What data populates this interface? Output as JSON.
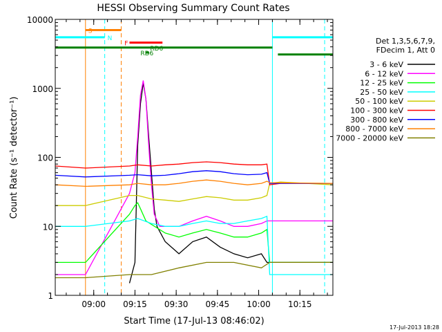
{
  "chart_data": {
    "type": "line",
    "title": "HESSI Observing Summary Count Rates",
    "xlabel": "Start Time (17-Jul-13 08:46:02)",
    "ylabel": "Count Rate (s⁻¹ detector⁻¹)",
    "y_scale": "log",
    "ylim": [
      1,
      10000
    ],
    "xlim_minutes": [
      0,
      101
    ],
    "x_ticks": [
      {
        "label": "09:00",
        "t": 14
      },
      {
        "label": "09:15",
        "t": 29
      },
      {
        "label": "09:30",
        "t": 44
      },
      {
        "label": "09:45",
        "t": 59
      },
      {
        "label": "10:00",
        "t": 74
      },
      {
        "label": "10:15",
        "t": 89
      }
    ],
    "y_ticks": [
      {
        "label": "1",
        "v": 1
      },
      {
        "label": "10",
        "v": 10
      },
      {
        "label": "100",
        "v": 100
      },
      {
        "label": "1000",
        "v": 1000
      },
      {
        "label": "10000",
        "v": 10000
      }
    ],
    "legend": {
      "placement": "right",
      "header": [
        "Det 1,3,5,6,7,9,",
        "FDecim 1, Att 0"
      ]
    },
    "series": [
      {
        "name": "3 - 6 keV",
        "color": "#000000",
        "points": [
          [
            27,
            1.5
          ],
          [
            29,
            3
          ],
          [
            30,
            150
          ],
          [
            31,
            600
          ],
          [
            32,
            1200
          ],
          [
            33,
            700
          ],
          [
            34,
            200
          ],
          [
            35,
            60
          ],
          [
            36,
            18
          ],
          [
            37,
            10
          ],
          [
            40,
            6
          ],
          [
            45,
            4
          ],
          [
            50,
            6
          ],
          [
            55,
            7
          ],
          [
            60,
            5
          ],
          [
            65,
            4
          ],
          [
            70,
            3.5
          ],
          [
            75,
            4
          ],
          [
            77,
            3
          ],
          [
            82,
            3
          ],
          [
            101,
            3
          ]
        ]
      },
      {
        "name": "6 - 12 keV",
        "color": "#ff00ff",
        "points": [
          [
            0,
            2
          ],
          [
            11,
            2
          ],
          [
            27,
            30
          ],
          [
            29,
            60
          ],
          [
            30,
            200
          ],
          [
            31,
            800
          ],
          [
            32,
            1300
          ],
          [
            33,
            700
          ],
          [
            34,
            150
          ],
          [
            35,
            40
          ],
          [
            36,
            15
          ],
          [
            38,
            10
          ],
          [
            45,
            10
          ],
          [
            50,
            12
          ],
          [
            55,
            14
          ],
          [
            60,
            12
          ],
          [
            65,
            10
          ],
          [
            70,
            10
          ],
          [
            75,
            11
          ],
          [
            77,
            12
          ],
          [
            80,
            12
          ],
          [
            101,
            12
          ]
        ]
      },
      {
        "name": "12 - 25 keV",
        "color": "#00ff00",
        "points": [
          [
            0,
            3
          ],
          [
            11,
            3
          ],
          [
            27,
            15
          ],
          [
            29,
            20
          ],
          [
            30,
            22
          ],
          [
            31,
            18
          ],
          [
            33,
            12
          ],
          [
            40,
            8
          ],
          [
            45,
            7
          ],
          [
            50,
            8
          ],
          [
            55,
            9
          ],
          [
            60,
            8
          ],
          [
            65,
            7
          ],
          [
            70,
            7
          ],
          [
            75,
            8
          ],
          [
            77,
            9
          ],
          [
            78,
            3
          ],
          [
            101,
            3
          ]
        ]
      },
      {
        "name": "25 - 50 keV",
        "color": "#00ffff",
        "points": [
          [
            0,
            10
          ],
          [
            11,
            10
          ],
          [
            27,
            12
          ],
          [
            30,
            13
          ],
          [
            35,
            11
          ],
          [
            40,
            10
          ],
          [
            45,
            10
          ],
          [
            50,
            11
          ],
          [
            55,
            12
          ],
          [
            60,
            11
          ],
          [
            65,
            11
          ],
          [
            70,
            12
          ],
          [
            75,
            13
          ],
          [
            77,
            14
          ],
          [
            78,
            2
          ],
          [
            101,
            2
          ]
        ]
      },
      {
        "name": "50 - 100 keV",
        "color": "#cccc00",
        "points": [
          [
            0,
            20
          ],
          [
            11,
            20
          ],
          [
            27,
            28
          ],
          [
            30,
            28
          ],
          [
            35,
            25
          ],
          [
            40,
            24
          ],
          [
            45,
            23
          ],
          [
            50,
            25
          ],
          [
            55,
            27
          ],
          [
            60,
            26
          ],
          [
            65,
            24
          ],
          [
            70,
            24
          ],
          [
            75,
            26
          ],
          [
            77,
            28
          ],
          [
            78,
            42
          ],
          [
            82,
            44
          ],
          [
            101,
            40
          ]
        ]
      },
      {
        "name": "100 - 300 keV",
        "color": "#ff0000",
        "points": [
          [
            0,
            75
          ],
          [
            11,
            70
          ],
          [
            27,
            75
          ],
          [
            30,
            78
          ],
          [
            35,
            75
          ],
          [
            40,
            78
          ],
          [
            45,
            80
          ],
          [
            50,
            84
          ],
          [
            55,
            86
          ],
          [
            60,
            84
          ],
          [
            65,
            80
          ],
          [
            70,
            78
          ],
          [
            75,
            78
          ],
          [
            77,
            80
          ],
          [
            78,
            40
          ],
          [
            82,
            42
          ],
          [
            101,
            42
          ]
        ]
      },
      {
        "name": "300 - 800 keV",
        "color": "#0000ff",
        "points": [
          [
            0,
            55
          ],
          [
            11,
            52
          ],
          [
            27,
            55
          ],
          [
            30,
            56
          ],
          [
            35,
            54
          ],
          [
            40,
            55
          ],
          [
            45,
            58
          ],
          [
            50,
            62
          ],
          [
            55,
            64
          ],
          [
            60,
            62
          ],
          [
            65,
            58
          ],
          [
            70,
            56
          ],
          [
            75,
            57
          ],
          [
            77,
            60
          ],
          [
            78,
            42
          ],
          [
            101,
            42
          ]
        ]
      },
      {
        "name": "800 - 7000 keV",
        "color": "#ff8000",
        "points": [
          [
            0,
            40
          ],
          [
            11,
            38
          ],
          [
            27,
            40
          ],
          [
            30,
            42
          ],
          [
            35,
            40
          ],
          [
            40,
            40
          ],
          [
            45,
            42
          ],
          [
            50,
            45
          ],
          [
            55,
            47
          ],
          [
            60,
            45
          ],
          [
            65,
            42
          ],
          [
            70,
            40
          ],
          [
            75,
            42
          ],
          [
            77,
            45
          ],
          [
            78,
            43
          ],
          [
            101,
            42
          ]
        ]
      },
      {
        "name": "7000 - 20000 keV",
        "color": "#808000",
        "points": [
          [
            0,
            1.8
          ],
          [
            11,
            1.8
          ],
          [
            27,
            2
          ],
          [
            35,
            2
          ],
          [
            45,
            2.5
          ],
          [
            55,
            3
          ],
          [
            65,
            3
          ],
          [
            75,
            2.5
          ],
          [
            78,
            3
          ],
          [
            101,
            3
          ]
        ]
      }
    ],
    "state_bars": [
      {
        "label": "S",
        "color": "#ff8000",
        "t0": 11,
        "t1": 24,
        "v": 7000
      },
      {
        "label": "N",
        "color": "#00ffff",
        "t0": 0,
        "t1": 18,
        "v": 5500
      },
      {
        "label": "N",
        "color": "#00ffff",
        "t0": 79,
        "t1": 101,
        "v": 5500
      },
      {
        "label": "F",
        "color": "#ff0000",
        "t0": 27,
        "t1": 39,
        "v": 4600
      },
      {
        "label": "RD6",
        "color": "#008000",
        "t0": 0,
        "t1": 79,
        "v": 3900
      },
      {
        "label": "RD6",
        "color": "#008000",
        "t0": 81,
        "t1": 101,
        "v": 3100
      },
      {
        "label": "RD6",
        "color": "#008000",
        "t0": 33,
        "t1": 34,
        "v": 3300
      }
    ],
    "vlines": [
      {
        "t": 11,
        "color": "#ff8000",
        "style": "solid"
      },
      {
        "t": 18,
        "color": "#00ffff",
        "style": "dashed"
      },
      {
        "t": 24,
        "color": "#ff8000",
        "style": "dashed"
      },
      {
        "t": 79,
        "color": "#00ffff",
        "style": "solid"
      },
      {
        "t": 98,
        "color": "#00ffff",
        "style": "dashed"
      }
    ],
    "annotations": [
      {
        "text": "S",
        "color": "#ff8000"
      },
      {
        "text": "N",
        "color": "#00ffff"
      },
      {
        "text": "F",
        "color": "#ff0000"
      },
      {
        "text": "RD6",
        "color": "#008000"
      },
      {
        "text": "RD6",
        "color": "#008000"
      }
    ],
    "footer_date": "17-Jul-2013 18:28"
  }
}
